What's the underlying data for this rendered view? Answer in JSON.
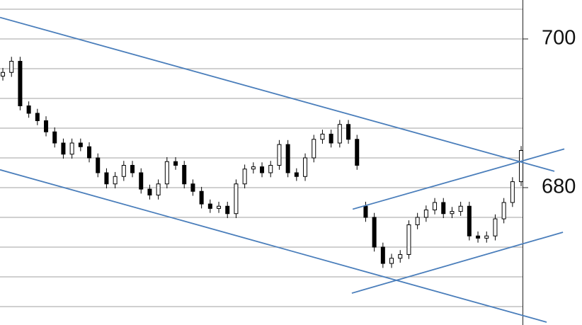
{
  "chart_data": {
    "type": "candlestick",
    "open": [
      695,
      695.5,
      697,
      691,
      690,
      689,
      687.5,
      686,
      684.5,
      686,
      685.5,
      684,
      682,
      680.5,
      681.5,
      683,
      682,
      679.8,
      679,
      680.5,
      683.5,
      683,
      680.5,
      679.5,
      677.8,
      677.2,
      677.5,
      676.5,
      680.5,
      682.5,
      682.8,
      682,
      683,
      685.8,
      682,
      681.5,
      684,
      686.5,
      687.2,
      686,
      688.5,
      686.5,
      677.5,
      676,
      672,
      669.8,
      670.5,
      671,
      675,
      676,
      677,
      678,
      676.5,
      676.8,
      677.5,
      673.5,
      673.2,
      673.5,
      675.8,
      678,
      680.8
    ],
    "high": [
      696.1,
      697.6,
      697.6,
      691.6,
      690.6,
      689.6,
      688.1,
      686.6,
      686.6,
      686.6,
      686.1,
      684.6,
      682.6,
      682.1,
      683.6,
      683.6,
      682.6,
      680.4,
      681.1,
      684.1,
      684.1,
      683.6,
      681.1,
      680.1,
      678.4,
      678.1,
      678.1,
      681.1,
      683.1,
      683.4,
      683.4,
      683.6,
      686.4,
      686.4,
      682.6,
      684.6,
      687.1,
      687.8,
      687.8,
      689.1,
      689.1,
      687.1,
      678.1,
      676.6,
      672.6,
      671.1,
      671.6,
      675.6,
      676.6,
      677.6,
      678.6,
      678.6,
      677.4,
      678.1,
      678.1,
      674.1,
      674.1,
      676.4,
      678.6,
      681.4,
      685.6
    ],
    "low": [
      694.4,
      694.9,
      690.4,
      689.4,
      688.4,
      686.9,
      685.4,
      683.9,
      683.9,
      684.9,
      683.4,
      681.4,
      679.9,
      679.9,
      680.9,
      681.4,
      679.2,
      678.4,
      678.4,
      679.9,
      682.4,
      679.9,
      678.9,
      677.2,
      676.6,
      676.6,
      675.9,
      675.9,
      679.9,
      681.9,
      681.4,
      681.4,
      682.4,
      681.4,
      680.9,
      680.9,
      683.4,
      685.9,
      685.4,
      685.4,
      685.9,
      682.4,
      675.4,
      671.4,
      669.2,
      669.2,
      669.9,
      670.4,
      674.4,
      675.4,
      676.4,
      675.9,
      675.9,
      676.2,
      672.9,
      672.6,
      672.6,
      672.9,
      675.2,
      677.4,
      680.2
    ],
    "close": [
      695.5,
      697,
      691,
      690,
      689,
      687.5,
      686,
      684.5,
      686,
      685.5,
      684,
      682,
      680.5,
      681.5,
      683,
      682,
      679.8,
      679,
      680.5,
      683.5,
      683,
      680.5,
      679.5,
      677.8,
      677.2,
      677.5,
      676.5,
      680.5,
      682.5,
      682.8,
      682,
      683,
      685.8,
      682,
      681.5,
      684,
      686.5,
      687.2,
      686,
      688.5,
      686.5,
      683,
      676,
      672,
      669.8,
      670.5,
      671,
      675,
      676,
      677,
      678,
      676.5,
      676.8,
      677.5,
      673.5,
      673.2,
      673.5,
      675.8,
      678,
      680.8,
      685
    ],
    "up_color": "#ffffff",
    "down_color": "#000000",
    "xlim": [
      -0.33,
      60.16
    ],
    "ylim": [
      661.52,
      705.24
    ],
    "yticks": [
      700,
      680
    ],
    "gridlines": [
      704,
      700,
      696,
      692,
      688,
      684,
      680,
      676,
      672,
      668,
      664
    ],
    "grid_color": "#b4b4b4",
    "trendline_color": "#4a7ebb",
    "trendlines": [
      {
        "x": [
          -0.33,
          63.85
        ],
        "y": [
          702.9,
          682.2
        ]
      },
      {
        "x": [
          -0.33,
          62.95
        ],
        "y": [
          682.4,
          661.9
        ]
      },
      {
        "x": [
          40.5,
          65.0
        ],
        "y": [
          677.1,
          685.2
        ]
      },
      {
        "x": [
          40.4,
          64.84
        ],
        "y": [
          665.8,
          674.0
        ]
      }
    ]
  }
}
